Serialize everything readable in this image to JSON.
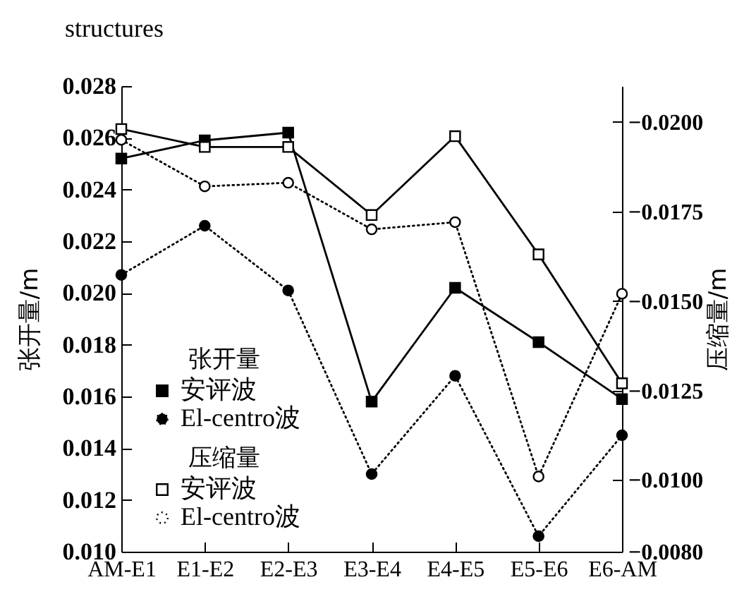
{
  "chart_data": {
    "type": "line",
    "title": "structures",
    "ylabel": "张开量/m",
    "y2label": "压缩量/m",
    "categories": [
      "AM-E1",
      "E1-E2",
      "E2-E3",
      "E3-E4",
      "E4-E5",
      "E5-E6",
      "E6-AM"
    ],
    "series": [
      {
        "name": "安评波",
        "color": "#000000",
        "marker": "square",
        "line_style": "solid",
        "values": [
          0.0252,
          0.0259,
          0.0262,
          0.0158,
          0.0202,
          0.0181,
          0.0159
        ]
      },
      {
        "name": "El-centro波",
        "color": "#000000",
        "marker": "circle",
        "line_style": "dotted",
        "values": [
          0.0207,
          0.0226,
          0.0201,
          0.013,
          0.0168,
          0.0106,
          0.0145
        ]
      },
      {
        "name": "安评波",
        "color": "#000000",
        "marker": "square",
        "line_style": "solid",
        "axis": "y2",
        "values": [
          -0.0198,
          -0.0193,
          -0.0193,
          -0.0174,
          -0.0196,
          -0.0163,
          -0.0127
        ]
      },
      {
        "name": "El-centro波",
        "color": "#000000",
        "marker": "circle",
        "line_style": "dotted",
        "axis": "y2",
        "values": [
          -0.0195,
          -0.0182,
          -0.0183,
          -0.017,
          -0.0172,
          -0.0101,
          -0.0152
        ]
      }
    ],
    "annotations": [
      "张开量",
      "压缩量"
    ],
    "ylim": [
      0.01,
      0.028
    ],
    "yticks": [
      {
        "value": 0.01,
        "label": "0.010"
      },
      {
        "value": 0.012,
        "label": "0.012"
      },
      {
        "value": 0.014,
        "label": "0.014"
      },
      {
        "value": 0.016,
        "label": "0.016"
      },
      {
        "value": 0.018,
        "label": "0.018"
      },
      {
        "value": 0.02,
        "label": "0.020"
      },
      {
        "value": 0.022,
        "label": "0.022"
      },
      {
        "value": 0.024,
        "label": "0.024"
      },
      {
        "value": 0.026,
        "label": "0.026"
      },
      {
        "value": 0.028,
        "label": "0.028"
      }
    ],
    "y2lim": [
      -0.008,
      -0.021
    ],
    "y2ticks": [
      {
        "value": -0.008,
        "label": "−0.0080"
      },
      {
        "value": -0.01,
        "label": "−0.0100"
      },
      {
        "value": -0.0125,
        "label": "−0.0125"
      },
      {
        "value": -0.015,
        "label": "−0.0150"
      },
      {
        "value": -0.0175,
        "label": "−0.0175"
      },
      {
        "value": -0.02,
        "label": "−0.0200"
      }
    ],
    "legend": "bottom left",
    "grid": false
  }
}
